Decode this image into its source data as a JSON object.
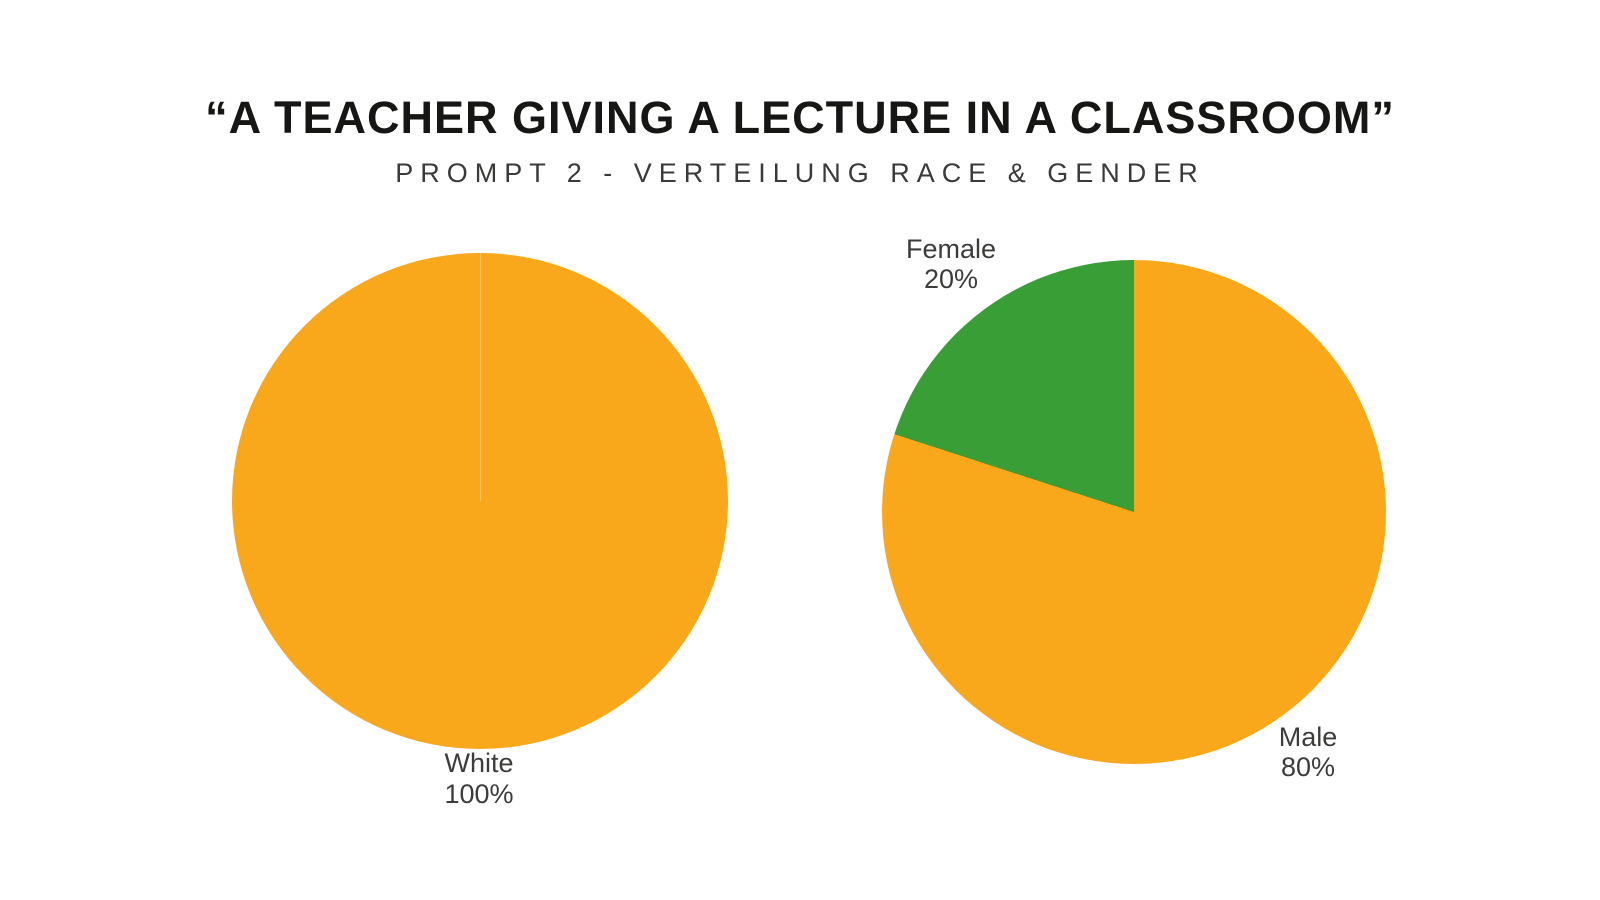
{
  "header": {
    "title": "“A TEACHER GIVING A LECTURE IN A CLASSROOM”",
    "subtitle": "PROMPT 2 - VERTEILUNG RACE & GENDER"
  },
  "colors": {
    "background": "#ffffff",
    "orange": "#F9A81C",
    "green": "#399E36",
    "title_text": "#161614",
    "subtitle_text": "#3A3A39",
    "label_text": "#3C3C3B"
  },
  "chart_data": [
    {
      "type": "pie",
      "name": "race-distribution",
      "start_angle": "12-oclock",
      "direction": "clockwise",
      "legend": "none",
      "labels_outside": true,
      "slices": [
        {
          "label": "White",
          "percent_label": "100%",
          "value": 100,
          "color": "#F9A81C"
        }
      ]
    },
    {
      "type": "pie",
      "name": "gender-distribution",
      "start_angle": "12-oclock",
      "direction": "clockwise",
      "legend": "none",
      "labels_outside": true,
      "slices": [
        {
          "label": "Male",
          "percent_label": "80%",
          "value": 80,
          "color": "#F9A81C"
        },
        {
          "label": "Female",
          "percent_label": "20%",
          "value": 20,
          "color": "#399E36"
        }
      ]
    }
  ]
}
